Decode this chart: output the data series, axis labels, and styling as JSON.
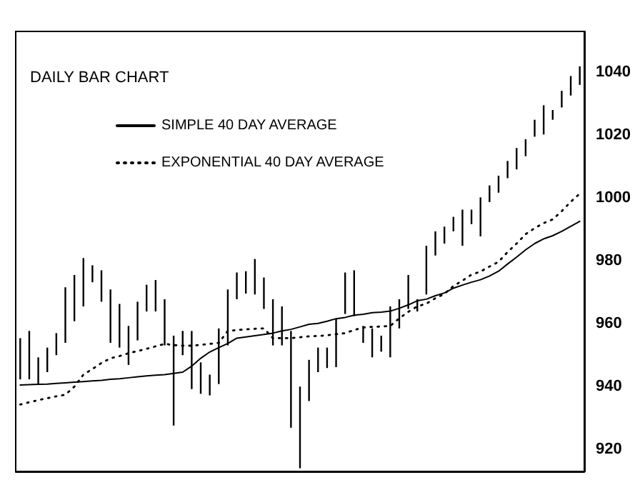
{
  "chart_data": {
    "type": "bar",
    "title": "DAILY BAR CHART",
    "categories": [
      null,
      null,
      null,
      null,
      null,
      null,
      null,
      null,
      null,
      null,
      null,
      null,
      null,
      null,
      null,
      null,
      null,
      null,
      null,
      null,
      null,
      null,
      null,
      null,
      null,
      null,
      null,
      null,
      null,
      null,
      null,
      null,
      null,
      null,
      null,
      null,
      null,
      null,
      null,
      null,
      null,
      null,
      null,
      null,
      null,
      null,
      null,
      null,
      null,
      null,
      null,
      null,
      null,
      null,
      null,
      null,
      null,
      null,
      null,
      null,
      null,
      null,
      null
    ],
    "series": [
      {
        "color": "#000000",
        "base": [
          942.3,
          942.3,
          940.8,
          944.6,
          950.0,
          953.9,
          960.8,
          965.5,
          973.2,
          967.0,
          953.9,
          952.4,
          946.9,
          954.7,
          963.9,
          963.9,
          953.1,
          927.6,
          950.0,
          939.2,
          937.7,
          937.2,
          940.8,
          953.1,
          967.8,
          969.6,
          969.3,
          964.7,
          953.1,
          953.1,
          926.9,
          914,
          935.4,
          944.6,
          945.9,
          946.2,
          963.1,
          962.4,
          953.9,
          949.3,
          951.1,
          949.3,
          958.5,
          964.7,
          963.9,
          969.3,
          981.7,
          985.5,
          989.4,
          984.8,
          991.7,
          987.8,
          998.7,
          1001.7,
          1006.3,
          1009.1,
          1013.3,
          1019.5,
          1020.2,
          1024.9,
          1028.8,
          1032.6,
          1036.0
        ],
        "values": [
          13.1,
          15.4,
          8.5,
          7.8,
          7.0,
          17.7,
          14.7,
          15.4,
          5.4,
          10.0,
          17.0,
          13.9,
          12.4,
          12.3,
          8.5,
          10.0,
          14.7,
          28.6,
          7.7,
          18.5,
          10.0,
          6.6,
          17.7,
          17.8,
          8.5,
          7.1,
          11.3,
          10.0,
          14.7,
          12.4,
          30.8,
          26,
          13.1,
          7.8,
          6.5,
          15.4,
          13.2,
          14.6,
          5.4,
          9.2,
          5.1,
          16.2,
          9.3,
          10.8,
          3.9,
          15.5,
          7.7,
          5.4,
          4.6,
          11.5,
          4.6,
          12.4,
          5.3,
          5.4,
          5.5,
          6.8,
          5.4,
          5.4,
          9.3,
          3.1,
          5.3,
          6.2,
          5.9
        ]
      },
      {
        "type": "line",
        "name": "SIMPLE 40 DAY AVERAGE",
        "color": "#000000",
        "line_style": "solid",
        "values": [
          940.5,
          940.6,
          940.7,
          940.8,
          941.0,
          941.2,
          941.4,
          941.6,
          941.8,
          942.0,
          942.3,
          942.5,
          942.8,
          943.1,
          943.4,
          943.6,
          943.8,
          944.2,
          944.6,
          946.5,
          949.0,
          951.0,
          952.4,
          953.7,
          955.4,
          955.8,
          956.2,
          956.6,
          957.0,
          957.7,
          958.2,
          959.0,
          959.8,
          960.1,
          960.8,
          961.6,
          962.0,
          962.7,
          963.0,
          963.5,
          963.7,
          964.0,
          964.9,
          966.0,
          967.3,
          967.8,
          968.9,
          969.8,
          971.3,
          972.3,
          973.2,
          974.0,
          975.2,
          976.7,
          979.0,
          981.2,
          983.5,
          985.5,
          987.0,
          988.0,
          989.4,
          991.0,
          992.6
        ]
      },
      {
        "type": "line",
        "name": "EXPONENTIAL 40 DAY AVERAGE",
        "color": "#000000",
        "line_style": "dotted",
        "values": [
          934.3,
          935.0,
          935.7,
          936.3,
          936.9,
          937.4,
          940.0,
          943.8,
          945.6,
          947.5,
          949.0,
          949.7,
          950.6,
          951.3,
          952.0,
          952.8,
          953.6,
          953.2,
          953.0,
          953.0,
          953.3,
          953.6,
          953.9,
          957.7,
          958.0,
          958.2,
          958.4,
          958.5,
          955.4,
          955.4,
          955.4,
          955.7,
          956.0,
          956.1,
          956.3,
          956.7,
          957.0,
          958.0,
          958.8,
          959.0,
          959.1,
          959.3,
          961.7,
          963.8,
          965.5,
          966.4,
          968.1,
          969.5,
          972.0,
          973.7,
          975.6,
          976.6,
          978.2,
          979.7,
          982.8,
          985.5,
          988.5,
          990.4,
          992.0,
          993.2,
          995.8,
          998.8,
          1001.4
        ]
      }
    ],
    "ylim": [
      913,
      1053
    ],
    "yticks": [
      920,
      940,
      960,
      980,
      1000,
      1020,
      1040
    ],
    "grid": false,
    "legend": "top left",
    "marker": "none",
    "tick_labels": "y"
  }
}
